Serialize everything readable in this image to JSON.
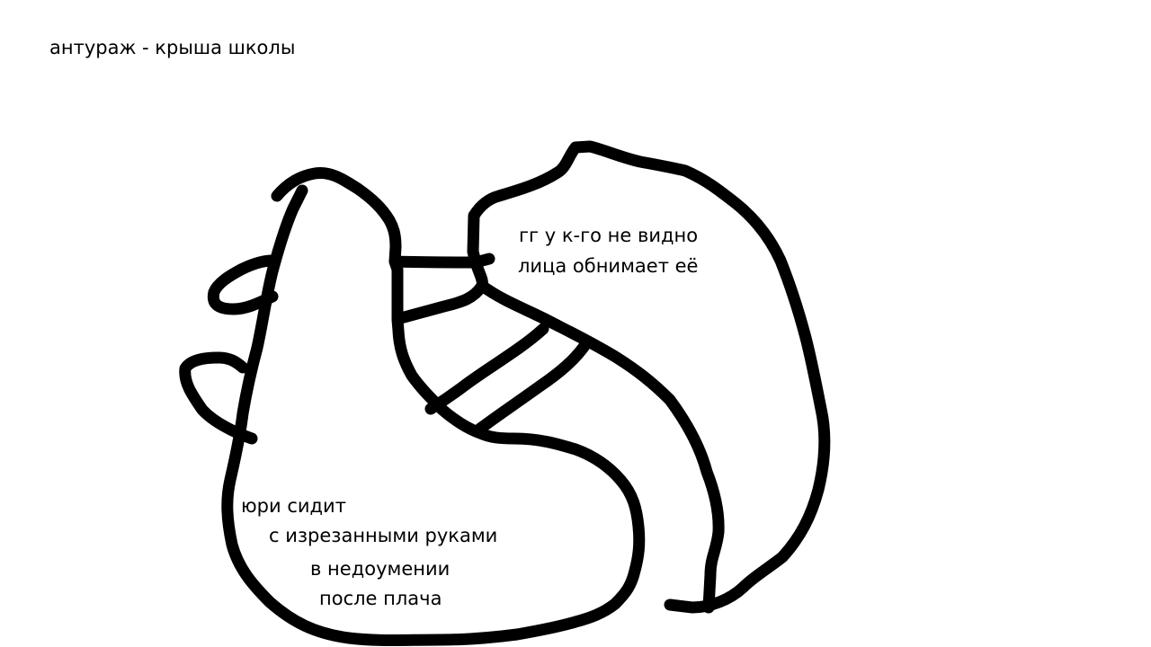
{
  "scene": {
    "title": "антураж - крыша школы"
  },
  "notes": {
    "hugger": {
      "lines": [
        "гг у к-го не видно",
        "лица обнимает её"
      ]
    },
    "yuri": {
      "lines": [
        "юри сидит",
        "с изрезанными руками",
        "в недоумении",
        "после плача"
      ]
    }
  }
}
